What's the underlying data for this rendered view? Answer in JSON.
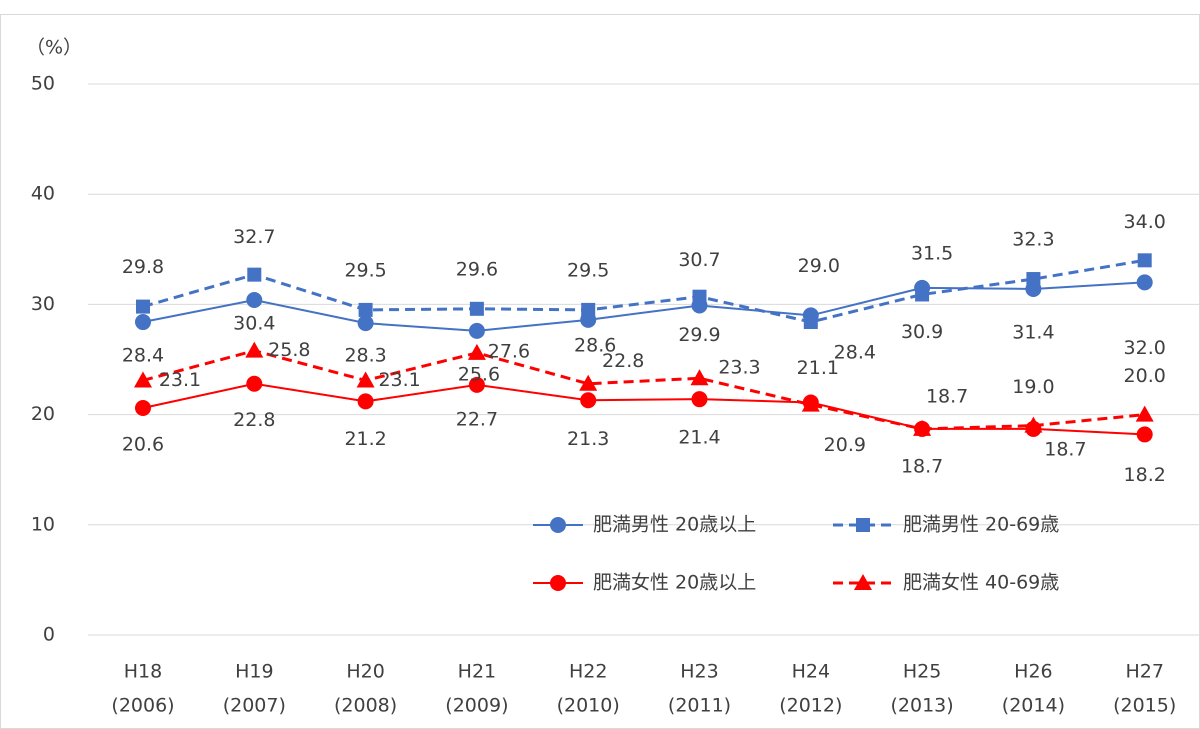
{
  "chart_data": {
    "type": "line",
    "y_label": "（%）",
    "categories": [
      [
        "H18",
        "(2006)"
      ],
      [
        "H19",
        "(2007)"
      ],
      [
        "H20",
        "(2008)"
      ],
      [
        "H21",
        "(2009)"
      ],
      [
        "H22",
        "(2010)"
      ],
      [
        "H23",
        "(2011)"
      ],
      [
        "H24",
        "(2012)"
      ],
      [
        "H25",
        "(2013)"
      ],
      [
        "H26",
        "(2014)"
      ],
      [
        "H27",
        "(2015)"
      ]
    ],
    "series": [
      {
        "name": "肥満男性 20歳以上",
        "color": "#4472c4",
        "dash": false,
        "marker": "circle",
        "values": [
          28.4,
          30.4,
          28.3,
          27.6,
          28.6,
          29.9,
          29.0,
          31.5,
          31.4,
          32.0
        ],
        "value_labels": [
          "28.4",
          "30.4",
          "28.3",
          "27.6",
          "28.6",
          "29.9",
          "29.0",
          "31.5",
          "31.4",
          "32.0"
        ]
      },
      {
        "name": "肥満男性 20-69歳",
        "color": "#4472c4",
        "dash": true,
        "marker": "square",
        "values": [
          29.8,
          32.7,
          29.5,
          29.6,
          29.5,
          30.7,
          28.4,
          30.9,
          32.3,
          34.0
        ],
        "value_labels": [
          "29.8",
          "32.7",
          "29.5",
          "29.6",
          "29.5",
          "30.7",
          "28.4",
          "30.9",
          "32.3",
          "34.0"
        ]
      },
      {
        "name": "肥満女性 20歳以上",
        "color": "#ff0000",
        "dash": false,
        "marker": "circle",
        "values": [
          20.6,
          22.8,
          21.2,
          22.7,
          21.3,
          21.4,
          21.1,
          18.7,
          18.7,
          18.2
        ],
        "value_labels": [
          "20.6",
          "22.8",
          "21.2",
          "22.7",
          "21.3",
          "21.4",
          "21.1",
          "18.7",
          "18.7",
          "18.2"
        ]
      },
      {
        "name": "肥満女性 40-69歳",
        "color": "#ff0000",
        "dash": true,
        "marker": "triangle",
        "values": [
          23.1,
          25.8,
          23.1,
          25.6,
          22.8,
          23.3,
          20.9,
          18.7,
          19.0,
          20.0
        ],
        "value_labels": [
          "23.1",
          "25.8",
          "23.1",
          "25.6",
          "22.8",
          "23.3",
          "20.9",
          "18.7",
          "19.0",
          "20.0"
        ]
      }
    ],
    "ylim": [
      0,
      50
    ],
    "yticks": [
      0,
      10,
      20,
      30,
      40,
      50
    ],
    "grid": true,
    "legend": "lower right"
  }
}
